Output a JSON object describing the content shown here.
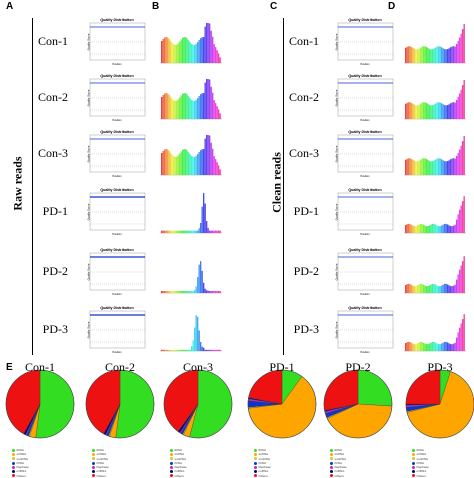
{
  "panel_letters": {
    "a": "A",
    "b": "B",
    "c": "C",
    "d": "D",
    "e": "E"
  },
  "side_titles": {
    "raw": "Raw reads",
    "clean": "Clean reads"
  },
  "samples": [
    "Con-1",
    "Con-2",
    "Con-3",
    "PD-1",
    "PD-2",
    "PD-3"
  ],
  "quality_plot": {
    "title": "Quality Distribution",
    "ylabel": "Quality Score",
    "xlabel": "Position"
  },
  "colors": {
    "green": "#33dd22",
    "orange": "#ffa500",
    "red": "#ee1111",
    "blue": "#1133cc",
    "navy": "#000088",
    "purple": "#b12fbf",
    "pink": "#e040a0"
  },
  "chart_data": [
    {
      "type": "pie",
      "panel": "E",
      "title": "Con-1",
      "categories": [
        "tRNA",
        "scRNA",
        "snoRNA",
        "rRNA",
        "Repbase",
        "miRNA",
        "Others"
      ],
      "values": [
        52,
        3,
        0.5,
        1,
        0.5,
        1,
        42
      ]
    },
    {
      "type": "pie",
      "panel": "E",
      "title": "Con-2",
      "categories": [
        "tRNA",
        "scRNA",
        "snoRNA",
        "rRNA",
        "Repbase",
        "miRNA",
        "Others"
      ],
      "values": [
        52,
        3,
        0.5,
        1,
        0.5,
        1,
        42
      ]
    },
    {
      "type": "pie",
      "panel": "E",
      "title": "Con-3",
      "categories": [
        "tRNA",
        "scRNA",
        "snoRNA",
        "rRNA",
        "Repbase",
        "miRNA",
        "Others"
      ],
      "values": [
        54,
        3,
        0.5,
        1,
        0.5,
        1,
        40
      ]
    },
    {
      "type": "pie",
      "panel": "E",
      "title": "PD-1",
      "categories": [
        "tRNA",
        "scRNA",
        "snoRNA",
        "rRNA",
        "Repbase",
        "miRNA",
        "Others"
      ],
      "values": [
        10,
        63,
        0.5,
        3,
        1,
        0.5,
        22
      ]
    },
    {
      "type": "pie",
      "panel": "E",
      "title": "PD-2",
      "categories": [
        "tRNA",
        "scRNA",
        "snoRNA",
        "rRNA",
        "Repbase",
        "miRNA",
        "Others"
      ],
      "values": [
        26,
        42,
        0.5,
        2,
        1,
        0.5,
        28
      ]
    },
    {
      "type": "pie",
      "panel": "E",
      "title": "PD-3",
      "categories": [
        "tRNA",
        "scRNA",
        "snoRNA",
        "rRNA",
        "Repbase",
        "miRNA",
        "Others"
      ],
      "values": [
        5,
        66,
        0.5,
        2,
        1,
        0.5,
        25
      ]
    }
  ],
  "legend": [
    {
      "label": "tRNA",
      "color": "#33dd22"
    },
    {
      "label": "scRNA",
      "color": "#ffa500"
    },
    {
      "label": "snoRNA",
      "color": "#cccc33"
    },
    {
      "label": "rRNA",
      "color": "#1133cc"
    },
    {
      "label": "Repbase",
      "color": "#b12fbf"
    },
    {
      "label": "miRNA",
      "color": "#000088"
    },
    {
      "label": "Others",
      "color": "#ee1111"
    }
  ]
}
